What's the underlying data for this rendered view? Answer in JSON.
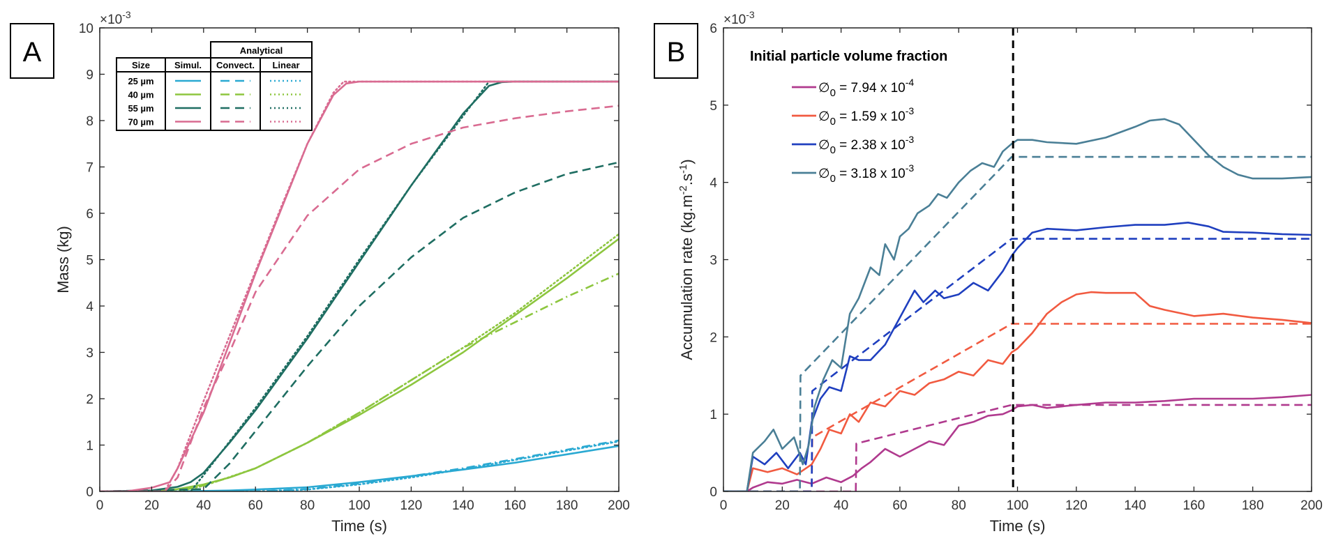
{
  "chart_data": [
    {
      "panel": "A",
      "type": "line",
      "xlabel": "Time (s)",
      "ylabel": "Mass (kg)",
      "y_exponent": "×10",
      "y_exponent_power": "-3",
      "xlim": [
        0,
        200
      ],
      "ylim": [
        0,
        10
      ],
      "xticks": [
        0,
        20,
        40,
        60,
        80,
        100,
        120,
        140,
        160,
        180,
        200
      ],
      "yticks": [
        0,
        1,
        2,
        3,
        4,
        5,
        6,
        7,
        8,
        9,
        10
      ],
      "legend": {
        "header_group": "Analytical",
        "columns": [
          "Size",
          "Simul.",
          "Convect.",
          "Linear"
        ],
        "rows": [
          "25 µm",
          "40 µm",
          "55 µm",
          "70 µm"
        ]
      },
      "series": [
        {
          "name": "25 µm Simul.",
          "color": "#2aa9d2",
          "style": "solid",
          "x": [
            0,
            30,
            40,
            50,
            60,
            80,
            100,
            120,
            140,
            160,
            180,
            200
          ],
          "y": [
            0,
            0,
            0.01,
            0.02,
            0.04,
            0.09,
            0.2,
            0.33,
            0.47,
            0.62,
            0.8,
            0.98
          ]
        },
        {
          "name": "25 µm Convect.",
          "color": "#2aa9d2",
          "style": "dashdot",
          "x": [
            0,
            60,
            80,
            100,
            120,
            140,
            160,
            180,
            200
          ],
          "y": [
            0,
            0,
            0.05,
            0.17,
            0.33,
            0.5,
            0.7,
            0.9,
            1.1
          ]
        },
        {
          "name": "25 µm Linear",
          "color": "#2aa9d2",
          "style": "dotted",
          "x": [
            0,
            60,
            80,
            100,
            120,
            140,
            160,
            180,
            200
          ],
          "y": [
            0,
            0,
            0.04,
            0.15,
            0.3,
            0.48,
            0.68,
            0.88,
            1.08
          ]
        },
        {
          "name": "40 µm Simul.",
          "color": "#8dc63f",
          "style": "solid",
          "x": [
            0,
            20,
            30,
            40,
            50,
            60,
            80,
            100,
            120,
            140,
            160,
            180,
            200
          ],
          "y": [
            0,
            0,
            0.05,
            0.15,
            0.3,
            0.5,
            1.05,
            1.65,
            2.3,
            3.0,
            3.8,
            4.6,
            5.45
          ]
        },
        {
          "name": "40 µm Convect.",
          "color": "#8dc63f",
          "style": "dashdot",
          "x": [
            0,
            30,
            40,
            50,
            60,
            80,
            100,
            120,
            140,
            160,
            180,
            200
          ],
          "y": [
            0,
            0,
            0.13,
            0.3,
            0.5,
            1.05,
            1.7,
            2.4,
            3.1,
            3.65,
            4.2,
            4.7
          ]
        },
        {
          "name": "40 µm Linear",
          "color": "#8dc63f",
          "style": "dotted",
          "x": [
            0,
            30,
            40,
            60,
            80,
            100,
            120,
            140,
            160,
            180,
            200
          ],
          "y": [
            0,
            0,
            0.12,
            0.5,
            1.05,
            1.7,
            2.4,
            3.1,
            3.85,
            4.7,
            5.55
          ]
        },
        {
          "name": "55 µm Simul.",
          "color": "#1f6e62",
          "style": "solid",
          "x": [
            0,
            20,
            30,
            35,
            40,
            50,
            60,
            80,
            100,
            120,
            140,
            150,
            155,
            160,
            200
          ],
          "y": [
            0,
            0.02,
            0.1,
            0.2,
            0.4,
            1.05,
            1.75,
            3.3,
            4.95,
            6.6,
            8.15,
            8.75,
            8.83,
            8.84,
            8.84
          ]
        },
        {
          "name": "55 µm Convect.",
          "color": "#1f6e62",
          "style": "dashed",
          "x": [
            0,
            40,
            50,
            60,
            80,
            100,
            120,
            140,
            160,
            180,
            200
          ],
          "y": [
            0,
            0.05,
            0.6,
            1.3,
            2.7,
            4.0,
            5.05,
            5.9,
            6.45,
            6.85,
            7.1
          ]
        },
        {
          "name": "55 µm Linear",
          "color": "#1f6e62",
          "style": "dotted",
          "x": [
            0,
            35,
            40,
            60,
            80,
            100,
            120,
            140,
            150,
            151,
            200
          ],
          "y": [
            0,
            0,
            0.35,
            1.8,
            3.35,
            5.0,
            6.6,
            8.1,
            8.84,
            8.84,
            8.84
          ]
        },
        {
          "name": "70 µm Simul.",
          "color": "#d96b91",
          "style": "solid",
          "x": [
            0,
            10,
            20,
            27,
            30,
            40,
            50,
            60,
            70,
            80,
            90,
            95,
            100,
            105,
            200
          ],
          "y": [
            0,
            0,
            0.08,
            0.2,
            0.5,
            1.7,
            3.2,
            4.7,
            6.1,
            7.5,
            8.55,
            8.8,
            8.84,
            8.84,
            8.84
          ]
        },
        {
          "name": "70 µm Convect.",
          "color": "#d96b91",
          "style": "dashed",
          "x": [
            0,
            25,
            30,
            40,
            50,
            60,
            80,
            100,
            120,
            140,
            160,
            180,
            200
          ],
          "y": [
            0,
            0,
            0.3,
            1.8,
            3.0,
            4.3,
            5.95,
            6.95,
            7.5,
            7.85,
            8.05,
            8.2,
            8.32
          ]
        },
        {
          "name": "70 µm Linear",
          "color": "#d96b91",
          "style": "dotted",
          "x": [
            0,
            25,
            30,
            40,
            50,
            60,
            70,
            80,
            90,
            94,
            200
          ],
          "y": [
            0,
            0,
            0.5,
            1.95,
            3.35,
            4.75,
            6.15,
            7.5,
            8.6,
            8.84,
            8.84
          ]
        }
      ]
    },
    {
      "panel": "B",
      "type": "line",
      "xlabel": "Time (s)",
      "ylabel": "Accumulation rate (kg.m",
      "ylabel_sup1": "-2",
      "ylabel_mid": ".s",
      "ylabel_sup2": "-1",
      "ylabel_end": ")",
      "y_exponent": "×10",
      "y_exponent_power": "-3",
      "xlim": [
        0,
        200
      ],
      "ylim": [
        0,
        6
      ],
      "xticks": [
        0,
        20,
        40,
        60,
        80,
        100,
        120,
        140,
        160,
        180,
        200
      ],
      "yticks": [
        0,
        1,
        2,
        3,
        4,
        5,
        6
      ],
      "vline_x": 98.5,
      "legend": {
        "title": "Initial particle volume fraction",
        "entries": [
          {
            "symbol": "∅",
            "sub": "0",
            "text": " = 7.94 x 10",
            "sup": "-4"
          },
          {
            "symbol": "∅",
            "sub": "0",
            "text": " = 1.59 x 10",
            "sup": "-3"
          },
          {
            "symbol": "∅",
            "sub": "0",
            "text": " = 2.38 x 10",
            "sup": "-3"
          },
          {
            "symbol": "∅",
            "sub": "0",
            "text": " = 3.18 x 10",
            "sup": "-3"
          }
        ]
      },
      "series": [
        {
          "name": "∅₀ = 7.94 x 10⁻⁴ simulated",
          "color": "#b03a8e",
          "style": "solid",
          "x": [
            0,
            8,
            10,
            15,
            20,
            25,
            30,
            35,
            40,
            44,
            47,
            50,
            55,
            60,
            65,
            70,
            75,
            80,
            85,
            90,
            95,
            98,
            100,
            105,
            110,
            120,
            130,
            140,
            150,
            160,
            170,
            180,
            190,
            200
          ],
          "y": [
            0,
            0,
            0.05,
            0.12,
            0.1,
            0.15,
            0.1,
            0.18,
            0.12,
            0.2,
            0.3,
            0.38,
            0.55,
            0.45,
            0.55,
            0.65,
            0.6,
            0.85,
            0.9,
            0.98,
            1.0,
            1.05,
            1.1,
            1.12,
            1.08,
            1.12,
            1.15,
            1.15,
            1.17,
            1.2,
            1.2,
            1.2,
            1.22,
            1.25
          ]
        },
        {
          "name": "∅₀ = 7.94 x 10⁻⁴ analytical",
          "color": "#b03a8e",
          "style": "dashed",
          "x": [
            0,
            45,
            45.2,
            98,
            200
          ],
          "y": [
            0,
            0,
            0.62,
            1.12,
            1.12
          ]
        },
        {
          "name": "∅₀ = 1.59 x 10⁻³ simulated",
          "color": "#f15a40",
          "style": "solid",
          "x": [
            0,
            8,
            10,
            15,
            20,
            25,
            30,
            33,
            36,
            40,
            43,
            46,
            50,
            55,
            60,
            65,
            70,
            75,
            80,
            85,
            90,
            95,
            98,
            100,
            105,
            110,
            115,
            120,
            125,
            130,
            140,
            145,
            150,
            160,
            170,
            180,
            190,
            200
          ],
          "y": [
            0,
            0,
            0.3,
            0.25,
            0.3,
            0.22,
            0.35,
            0.55,
            0.8,
            0.75,
            1.0,
            0.9,
            1.15,
            1.1,
            1.3,
            1.25,
            1.4,
            1.45,
            1.55,
            1.5,
            1.7,
            1.65,
            1.8,
            1.85,
            2.05,
            2.3,
            2.45,
            2.55,
            2.58,
            2.57,
            2.57,
            2.4,
            2.35,
            2.27,
            2.3,
            2.25,
            2.22,
            2.18
          ]
        },
        {
          "name": "∅₀ = 1.59 x 10⁻³ analytical",
          "color": "#f15a40",
          "style": "dashed",
          "x": [
            0,
            30,
            30.2,
            98,
            200
          ],
          "y": [
            0,
            0,
            0.7,
            2.17,
            2.17
          ]
        },
        {
          "name": "∅₀ = 2.38 x 10⁻³ simulated",
          "color": "#1f3fbf",
          "style": "solid",
          "x": [
            0,
            8,
            10,
            14,
            18,
            22,
            26,
            28,
            30,
            33,
            36,
            40,
            43,
            46,
            50,
            55,
            60,
            65,
            68,
            72,
            75,
            80,
            85,
            90,
            95,
            98,
            100,
            105,
            110,
            120,
            130,
            140,
            150,
            158,
            165,
            170,
            180,
            190,
            200
          ],
          "y": [
            0,
            0,
            0.45,
            0.35,
            0.5,
            0.3,
            0.5,
            0.35,
            0.9,
            1.2,
            1.35,
            1.3,
            1.75,
            1.7,
            1.7,
            1.9,
            2.25,
            2.6,
            2.45,
            2.6,
            2.5,
            2.55,
            2.7,
            2.6,
            2.85,
            3.05,
            3.15,
            3.35,
            3.4,
            3.38,
            3.42,
            3.45,
            3.45,
            3.48,
            3.43,
            3.36,
            3.35,
            3.33,
            3.32
          ]
        },
        {
          "name": "∅₀ = 2.38 x 10⁻³ analytical",
          "color": "#1f3fbf",
          "style": "dashed",
          "x": [
            0,
            30,
            30.2,
            98,
            200
          ],
          "y": [
            0,
            0,
            1.3,
            3.27,
            3.27
          ]
        },
        {
          "name": "∅₀ = 3.18 x 10⁻³ simulated",
          "color": "#4a7f96",
          "style": "solid",
          "x": [
            0,
            8,
            10,
            14,
            17,
            20,
            24,
            27,
            29,
            31,
            34,
            37,
            40,
            43,
            46,
            50,
            53,
            55,
            58,
            60,
            63,
            66,
            70,
            73,
            76,
            80,
            84,
            88,
            92,
            95,
            98,
            100,
            105,
            110,
            120,
            130,
            140,
            145,
            150,
            155,
            160,
            165,
            170,
            175,
            180,
            190,
            200
          ],
          "y": [
            0,
            0,
            0.5,
            0.65,
            0.8,
            0.55,
            0.7,
            0.35,
            0.6,
            1.1,
            1.45,
            1.7,
            1.6,
            2.3,
            2.5,
            2.9,
            2.8,
            3.2,
            3.0,
            3.3,
            3.4,
            3.6,
            3.7,
            3.85,
            3.8,
            4.0,
            4.15,
            4.25,
            4.2,
            4.4,
            4.5,
            4.55,
            4.55,
            4.52,
            4.5,
            4.58,
            4.72,
            4.8,
            4.82,
            4.75,
            4.55,
            4.35,
            4.2,
            4.1,
            4.05,
            4.05,
            4.07
          ]
        },
        {
          "name": "∅₀ = 3.18 x 10⁻³ analytical",
          "color": "#4a7f96",
          "style": "dashed",
          "x": [
            0,
            26,
            26.2,
            98,
            200
          ],
          "y": [
            0,
            0,
            1.5,
            4.33,
            4.33
          ]
        }
      ]
    }
  ],
  "panels": {
    "a_label": "A",
    "b_label": "B"
  }
}
